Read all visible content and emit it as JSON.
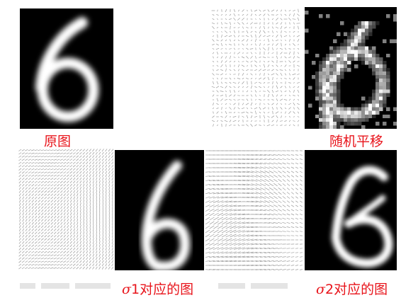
{
  "labels": {
    "original": "原图",
    "random_shift": "随机平移",
    "sigma1_symbol": "σ",
    "sigma1_text": "1对应的图",
    "sigma2_symbol": "σ",
    "sigma2_text": "2对应的图"
  },
  "colors": {
    "label": "#e8141b",
    "digit_background": "#000000",
    "field_stroke": "#9a9a9a"
  },
  "digit": "6"
}
